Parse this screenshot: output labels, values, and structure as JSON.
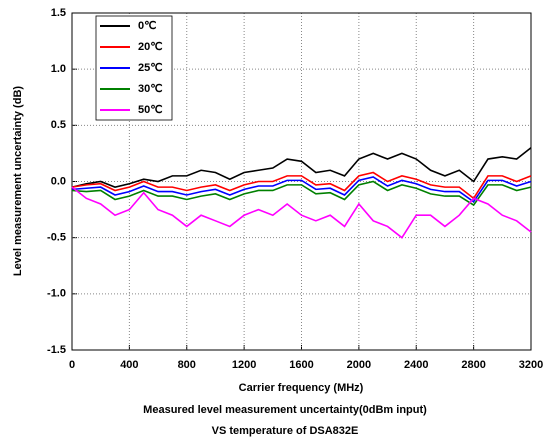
{
  "chart_data": {
    "type": "line",
    "title": "Measured level measurement uncertainty(0dBm input)",
    "subtitle": "VS temperature of DSA832E",
    "x_label": "Carrier frequency (MHz)",
    "y_label": "Level measurement uncertainty (dB)",
    "x": [
      0,
      100,
      200,
      300,
      400,
      500,
      600,
      700,
      800,
      900,
      1000,
      1100,
      1200,
      1300,
      1400,
      1500,
      1600,
      1700,
      1800,
      1900,
      2000,
      2100,
      2200,
      2300,
      2400,
      2500,
      2600,
      2700,
      2800,
      2900,
      3000,
      3100,
      3200
    ],
    "series": [
      {
        "name": "0℃",
        "color": "#000000",
        "values": [
          -0.05,
          -0.02,
          0.0,
          -0.05,
          -0.02,
          0.02,
          0.0,
          0.05,
          0.05,
          0.1,
          0.08,
          0.02,
          0.08,
          0.1,
          0.12,
          0.2,
          0.18,
          0.08,
          0.1,
          0.05,
          0.2,
          0.25,
          0.2,
          0.25,
          0.2,
          0.1,
          0.05,
          0.1,
          0.0,
          0.2,
          0.22,
          0.2,
          0.3
        ]
      },
      {
        "name": "20℃",
        "color": "#ff0000",
        "values": [
          -0.05,
          -0.03,
          -0.02,
          -0.08,
          -0.05,
          0.0,
          -0.05,
          -0.05,
          -0.08,
          -0.05,
          -0.03,
          -0.08,
          -0.03,
          0.0,
          0.0,
          0.05,
          0.05,
          -0.03,
          -0.02,
          -0.08,
          0.05,
          0.08,
          0.0,
          0.05,
          0.02,
          -0.03,
          -0.05,
          -0.05,
          -0.15,
          0.05,
          0.05,
          0.0,
          0.05
        ]
      },
      {
        "name": "25℃",
        "color": "#0000ff",
        "values": [
          -0.07,
          -0.06,
          -0.05,
          -0.12,
          -0.09,
          -0.04,
          -0.09,
          -0.09,
          -0.12,
          -0.09,
          -0.07,
          -0.12,
          -0.07,
          -0.04,
          -0.04,
          0.01,
          0.01,
          -0.07,
          -0.06,
          -0.12,
          0.01,
          0.04,
          -0.04,
          0.01,
          -0.02,
          -0.07,
          -0.09,
          -0.09,
          -0.18,
          0.01,
          0.01,
          -0.04,
          0.0
        ]
      },
      {
        "name": "30℃",
        "color": "#008000",
        "values": [
          -0.08,
          -0.09,
          -0.08,
          -0.16,
          -0.13,
          -0.08,
          -0.13,
          -0.13,
          -0.16,
          -0.13,
          -0.11,
          -0.16,
          -0.11,
          -0.08,
          -0.08,
          -0.03,
          -0.03,
          -0.11,
          -0.1,
          -0.16,
          -0.03,
          0.0,
          -0.08,
          -0.03,
          -0.06,
          -0.11,
          -0.13,
          -0.13,
          -0.21,
          -0.03,
          -0.03,
          -0.08,
          -0.05
        ]
      },
      {
        "name": "50℃",
        "color": "#ff00ff",
        "values": [
          -0.05,
          -0.15,
          -0.2,
          -0.3,
          -0.25,
          -0.1,
          -0.25,
          -0.3,
          -0.4,
          -0.3,
          -0.35,
          -0.4,
          -0.3,
          -0.25,
          -0.3,
          -0.2,
          -0.3,
          -0.35,
          -0.3,
          -0.4,
          -0.2,
          -0.35,
          -0.4,
          -0.5,
          -0.3,
          -0.3,
          -0.4,
          -0.3,
          -0.15,
          -0.2,
          -0.3,
          -0.35,
          -0.45
        ]
      }
    ],
    "xlim": [
      0,
      3200
    ],
    "xticks": [
      0,
      400,
      800,
      1200,
      1600,
      2000,
      2400,
      2800,
      3200
    ],
    "ylim": [
      -1.5,
      1.5
    ],
    "yticks": [
      {
        "value": -1.5,
        "label": "-1.5"
      },
      {
        "value": -1,
        "label": "-1.0"
      },
      -0.5,
      {
        "value": 0,
        "label": "0.0"
      },
      0.5,
      {
        "value": 1,
        "label": "1.0"
      },
      1.5
    ],
    "grid": true,
    "legend": "top-left"
  }
}
